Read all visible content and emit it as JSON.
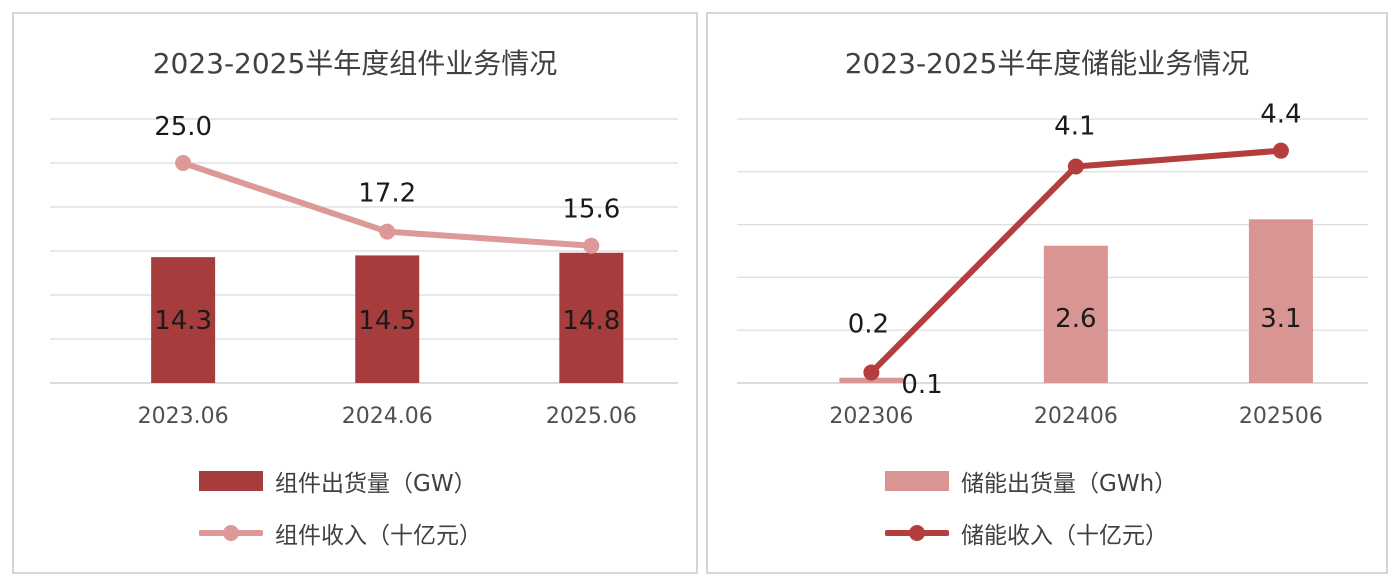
{
  "chart_data": [
    {
      "type": "bar",
      "title": "2023-2025半年度组件业务情况",
      "categories": [
        "2023.06",
        "2024.06",
        "2025.06"
      ],
      "series": [
        {
          "name": "组件出货量（GW）",
          "kind": "bar",
          "values": [
            14.3,
            14.5,
            14.8
          ],
          "color": "#a63c3c",
          "labels": [
            "14.3",
            "14.5",
            "14.8"
          ]
        },
        {
          "name": "组件收入（十亿元）",
          "kind": "line",
          "values": [
            25.0,
            17.2,
            15.6
          ],
          "color": "#dd9898",
          "labels": [
            "25.0",
            "17.2",
            "15.6"
          ]
        }
      ],
      "ylim": [
        0,
        30
      ],
      "grid": true,
      "legend": "bottom"
    },
    {
      "type": "bar",
      "title": "2023-2025半年度储能业务情况",
      "categories": [
        "202306",
        "202406",
        "202506"
      ],
      "series": [
        {
          "name": "储能出货量（GWh）",
          "kind": "bar",
          "values": [
            0.1,
            2.6,
            3.1
          ],
          "color": "#d99494",
          "labels": [
            "0.1",
            "2.6",
            "3.1"
          ]
        },
        {
          "name": "储能收入（十亿元）",
          "kind": "line",
          "values": [
            0.2,
            4.1,
            4.4
          ],
          "color": "#b43d3d",
          "labels": [
            "0.2",
            "4.1",
            "4.4"
          ]
        }
      ],
      "ylim": [
        0,
        5
      ],
      "grid": true,
      "legend": "bottom"
    }
  ]
}
